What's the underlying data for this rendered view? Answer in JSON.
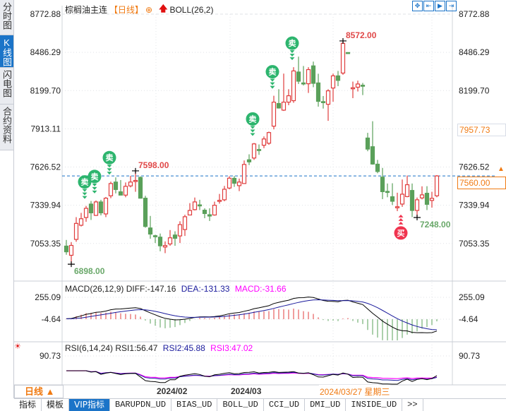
{
  "sidebar": {
    "tabs": [
      {
        "label": "分时图",
        "active": false
      },
      {
        "label": "K线图",
        "active": true
      },
      {
        "label": "闪电图",
        "active": false
      },
      {
        "label": "合约资料",
        "active": false
      }
    ]
  },
  "header": {
    "symbol": "棕榈油主连",
    "period": "【日线】",
    "add_icon": "circle-plus-icon",
    "indicator_icon": "red-up-arrow-icon",
    "indicator": "BOLL(26,2)",
    "toolbar_icons": [
      "crosshair-icon",
      "zoom-fit-icon",
      "next-bar-icon",
      "to-end-icon"
    ]
  },
  "price_boxes": {
    "hover_price": "7957.73",
    "last_price": "7560.00"
  },
  "date_axis": {
    "period_button": "日线 ▲",
    "labels": [
      "2024/02",
      "2024/03"
    ],
    "cursor_date": "2024/03/27 星期三"
  },
  "macd": {
    "name": "MACD(26,12,9)",
    "diff": "DIFF:-147.16",
    "dea": "DEA:-131.33",
    "macd": "MACD:-31.66",
    "ticks": [
      "255.09",
      "-4.64"
    ]
  },
  "rsi": {
    "name": "RSI(6,14,24)",
    "rsi1": "RSI1:56.47",
    "rsi2": "RSI2:45.88",
    "rsi3": "RSI3:47.02",
    "ticks": [
      "90.73"
    ]
  },
  "bottom_tabs": [
    {
      "label": "指标",
      "active": false
    },
    {
      "label": "模板",
      "active": false
    },
    {
      "label": "VIP指标",
      "active": true
    },
    {
      "label": "BARUPDN_UD",
      "active": false
    },
    {
      "label": "BIAS_UD",
      "active": false
    },
    {
      "label": "BOLL_UD",
      "active": false
    },
    {
      "label": "CCI_UD",
      "active": false
    },
    {
      "label": "DMI_UD",
      "active": false
    },
    {
      "label": "INSIDE_UD",
      "active": false
    },
    {
      "label": ">>",
      "active": false
    }
  ],
  "colors": {
    "up": "#e03c3c",
    "down": "#5aa05a",
    "accent": "#1b74c8",
    "orange": "#f07a12",
    "sell": "#2db56e",
    "buy": "#f0344f",
    "diff": "#000000",
    "dea": "#1a1a9c",
    "rsi3": "#ff00ff"
  },
  "chart_data": {
    "type": "candlestick",
    "y_ticks": [
      "8772.88",
      "8486.29",
      "8199.70",
      "7913.11",
      "7626.52",
      "7339.94",
      "7053.35"
    ],
    "ylim": [
      7053.35,
      8772.88
    ],
    "grid": true,
    "ohlc": [
      [
        7034,
        7080,
        6969,
        6991
      ],
      [
        6965,
        7064,
        6898,
        7039
      ],
      [
        7084,
        7251,
        7066,
        7204
      ],
      [
        7190,
        7283,
        7181,
        7239
      ],
      [
        7248,
        7335,
        7216,
        7317
      ],
      [
        7349,
        7372,
        7230,
        7283
      ],
      [
        7264,
        7376,
        7260,
        7365
      ],
      [
        7365,
        7381,
        7264,
        7283
      ],
      [
        7275,
        7402,
        7251,
        7393
      ],
      [
        7411,
        7517,
        7393,
        7503
      ],
      [
        7514,
        7549,
        7429,
        7458
      ],
      [
        7441,
        7529,
        7416,
        7416
      ],
      [
        7416,
        7511,
        7400,
        7482
      ],
      [
        7485,
        7561,
        7474,
        7514
      ],
      [
        7520,
        7598,
        7441,
        7526
      ],
      [
        7549,
        7556,
        7390,
        7393
      ],
      [
        7393,
        7411,
        7172,
        7181
      ],
      [
        7170,
        7260,
        7089,
        7124
      ],
      [
        7112,
        7119,
        7057,
        7104
      ],
      [
        7101,
        7128,
        6995,
        7036
      ],
      [
        7027,
        7069,
        6981,
        7038
      ],
      [
        7050,
        7154,
        7036,
        7096
      ],
      [
        7117,
        7145,
        7036,
        7092
      ],
      [
        7110,
        7220,
        7057,
        7195
      ],
      [
        7158,
        7269,
        7110,
        7254
      ],
      [
        7267,
        7356,
        7264,
        7301
      ],
      [
        7307,
        7398,
        7301,
        7365
      ],
      [
        7343,
        7381,
        7304,
        7337
      ],
      [
        7303,
        7317,
        7243,
        7278
      ],
      [
        7269,
        7317,
        7222,
        7259
      ],
      [
        7267,
        7367,
        7262,
        7340
      ],
      [
        7370,
        7425,
        7352,
        7377
      ],
      [
        7381,
        7485,
        7370,
        7460
      ],
      [
        7469,
        7558,
        7460,
        7543
      ],
      [
        7542,
        7559,
        7478,
        7505
      ],
      [
        7487,
        7540,
        7446,
        7514
      ],
      [
        7503,
        7676,
        7500,
        7646
      ],
      [
        7681,
        7722,
        7641,
        7665
      ],
      [
        7694,
        7807,
        7680,
        7800
      ],
      [
        7758,
        7796,
        7718,
        7750
      ],
      [
        7790,
        7856,
        7768,
        7837
      ],
      [
        7805,
        7892,
        7793,
        7885
      ],
      [
        7933,
        8161,
        7909,
        8113
      ],
      [
        8103,
        8210,
        8065,
        8069
      ],
      [
        8053,
        8327,
        8047,
        8113
      ],
      [
        8113,
        8210,
        8090,
        8161
      ],
      [
        8124,
        8375,
        8108,
        8347
      ],
      [
        8339,
        8454,
        8249,
        8270
      ],
      [
        8257,
        8384,
        8238,
        8249
      ],
      [
        8251,
        8375,
        8182,
        8357
      ],
      [
        8385,
        8417,
        8225,
        8254
      ],
      [
        8257,
        8326,
        8079,
        8119
      ],
      [
        8117,
        8159,
        8065,
        8112
      ],
      [
        8097,
        8210,
        7973,
        8198
      ],
      [
        8219,
        8327,
        8116,
        8310
      ],
      [
        8310,
        8347,
        8233,
        8276
      ],
      [
        8331,
        8572,
        8318,
        8554
      ],
      [
        8485,
        8487,
        8479,
        8479
      ],
      [
        8217,
        8267,
        8143,
        8221
      ],
      [
        8225,
        8274,
        8193,
        8249
      ],
      [
        8240,
        8257,
        8166,
        8234
      ],
      [
        7844,
        7883,
        7745,
        7761
      ],
      [
        7779,
        7970,
        7644,
        7649
      ],
      [
        7648,
        7680,
        7580,
        7593
      ],
      [
        7551,
        7620,
        7386,
        7442
      ],
      [
        7444,
        7503,
        7400,
        7438
      ],
      [
        7404,
        7505,
        7342,
        7370
      ],
      [
        7325,
        7434,
        7296,
        7329
      ],
      [
        7349,
        7533,
        7328,
        7423
      ],
      [
        7405,
        7563,
        7400,
        7494
      ],
      [
        7451,
        7503,
        7251,
        7301
      ],
      [
        7301,
        7398,
        7248,
        7381
      ],
      [
        7395,
        7482,
        7384,
        7418
      ],
      [
        7430,
        7483,
        7304,
        7347
      ],
      [
        7376,
        7441,
        7322,
        7392
      ],
      [
        7411,
        7566,
        7400,
        7560
      ]
    ],
    "annotations": [
      {
        "text": "8572.00",
        "index": 56,
        "price": 8572,
        "kind": "high"
      },
      {
        "text": "7598.00",
        "index": 14,
        "price": 7598,
        "kind": "high"
      },
      {
        "text": "6898.00",
        "index": 1,
        "price": 6898,
        "kind": "low"
      },
      {
        "text": "7248.00",
        "index": 71,
        "price": 7248,
        "kind": "low"
      }
    ],
    "signals": [
      {
        "index": 4,
        "type": "sell",
        "label": "卖"
      },
      {
        "index": 6,
        "type": "sell",
        "label": "卖"
      },
      {
        "index": 9,
        "type": "sell",
        "label": "卖"
      },
      {
        "index": 38,
        "type": "sell",
        "label": "卖"
      },
      {
        "index": 42,
        "type": "sell",
        "label": "卖"
      },
      {
        "index": 46,
        "type": "sell",
        "label": "卖"
      },
      {
        "index": 68,
        "type": "buy",
        "label": "买"
      }
    ],
    "last_price": 7560.0
  }
}
